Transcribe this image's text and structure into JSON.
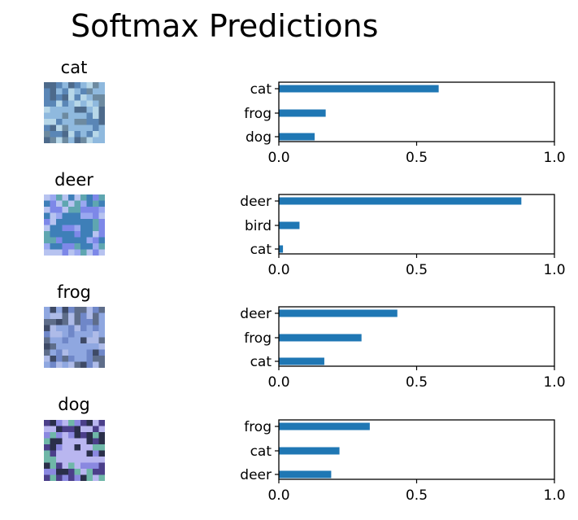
{
  "figure": {
    "title": "Softmax Predictions"
  },
  "samples": [
    {
      "label": "cat",
      "image_icon": "cat-thumbnail-icon",
      "palette": [
        "#5a86b6",
        "#8fb9de",
        "#b7d7e8",
        "#6d8aa0",
        "#4d6a8b"
      ]
    },
    {
      "label": "deer",
      "image_icon": "deer-thumbnail-icon",
      "palette": [
        "#b7c3f0",
        "#3e7fb8",
        "#7d88e8",
        "#5fa6b0",
        "#9aa8f0"
      ]
    },
    {
      "label": "frog",
      "image_icon": "frog-thumbnail-icon",
      "palette": [
        "#5e6d8a",
        "#8fa7e0",
        "#6f87c8",
        "#3e4a66",
        "#aebbe8"
      ]
    },
    {
      "label": "dog",
      "image_icon": "dog-thumbnail-icon",
      "palette": [
        "#8a88e0",
        "#b9b6f0",
        "#4b3f8a",
        "#2a2f4a",
        "#6fb7a8"
      ]
    }
  ],
  "chart_data": [
    {
      "type": "bar",
      "orientation": "horizontal",
      "categories": [
        "cat",
        "frog",
        "dog"
      ],
      "values": [
        0.58,
        0.17,
        0.13
      ],
      "xlim": [
        0,
        1
      ],
      "xticks": [
        0,
        0.5,
        1
      ],
      "xtick_labels": [
        "0.0",
        "0.5",
        "1.0"
      ]
    },
    {
      "type": "bar",
      "orientation": "horizontal",
      "categories": [
        "deer",
        "bird",
        "cat"
      ],
      "values": [
        0.88,
        0.075,
        0.015
      ],
      "xlim": [
        0,
        1
      ],
      "xticks": [
        0,
        0.5,
        1
      ],
      "xtick_labels": [
        "0.0",
        "0.5",
        "1.0"
      ]
    },
    {
      "type": "bar",
      "orientation": "horizontal",
      "categories": [
        "deer",
        "frog",
        "cat"
      ],
      "values": [
        0.43,
        0.3,
        0.165
      ],
      "xlim": [
        0,
        1
      ],
      "xticks": [
        0,
        0.5,
        1
      ],
      "xtick_labels": [
        "0.0",
        "0.5",
        "1.0"
      ]
    },
    {
      "type": "bar",
      "orientation": "horizontal",
      "categories": [
        "frog",
        "cat",
        "deer"
      ],
      "values": [
        0.33,
        0.22,
        0.19
      ],
      "xlim": [
        0,
        1
      ],
      "xticks": [
        0,
        0.5,
        1
      ],
      "xtick_labels": [
        "0.0",
        "0.5",
        "1.0"
      ]
    }
  ],
  "colors": {
    "bar": "#1f77b4",
    "axis": "#000000"
  }
}
